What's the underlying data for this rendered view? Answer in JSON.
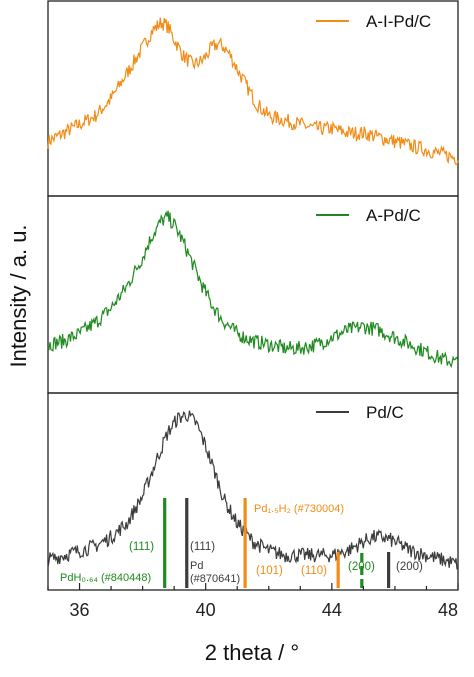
{
  "chart_data": [
    {
      "type": "line",
      "panel": "top",
      "legend": "A-I-Pd/C",
      "legend_position": "top-right",
      "color": "#f28c16",
      "x": [
        35,
        35.5,
        36,
        36.5,
        37,
        37.5,
        38,
        38.3,
        38.6,
        38.8,
        39,
        39.3,
        39.6,
        39.9,
        40.2,
        40.4,
        40.6,
        40.8,
        41.0,
        41.3,
        41.6,
        42,
        42.5,
        43,
        43.5,
        44,
        44.5,
        45,
        45.5,
        46,
        46.5,
        47,
        47.5,
        48
      ],
      "series": [
        {
          "name": "A-I-Pd/C",
          "values": [
            10,
            12,
            14,
            16,
            20,
            26,
            32,
            36,
            38,
            37,
            34,
            30,
            28,
            29,
            32,
            33,
            32,
            30,
            27,
            23,
            19,
            16,
            15,
            14,
            13,
            13,
            12,
            12,
            11,
            10,
            9,
            8,
            7,
            6
          ]
        }
      ]
    },
    {
      "type": "line",
      "panel": "middle",
      "legend": "A-Pd/C",
      "legend_position": "top-right",
      "color": "#1f8a1f",
      "x": [
        35,
        35.5,
        36,
        36.5,
        37,
        37.5,
        38,
        38.3,
        38.6,
        38.8,
        39,
        39.3,
        39.6,
        39.9,
        40.2,
        40.5,
        41,
        41.5,
        42,
        42.5,
        43,
        43.5,
        44,
        44.5,
        45,
        45.5,
        46,
        46.5,
        47,
        47.5,
        48
      ],
      "series": [
        {
          "name": "A-Pd/C",
          "values": [
            10,
            11,
            13,
            16,
            20,
            26,
            34,
            40,
            44,
            45,
            43,
            38,
            32,
            26,
            21,
            17,
            13,
            11,
            10,
            9,
            9,
            10,
            12,
            14,
            15,
            14,
            12,
            10,
            8,
            6,
            5
          ]
        }
      ]
    },
    {
      "type": "line",
      "panel": "bottom",
      "legend": "Pd/C",
      "legend_position": "top-right",
      "color": "#3c3c3c",
      "x": [
        35,
        35.5,
        36,
        36.5,
        37,
        37.5,
        38,
        38.5,
        38.8,
        39.1,
        39.4,
        39.7,
        40,
        40.3,
        40.6,
        41,
        41.5,
        42,
        42.5,
        43,
        43.5,
        44,
        44.5,
        45,
        45.3,
        45.6,
        46,
        46.5,
        47,
        47.5,
        48
      ],
      "series": [
        {
          "name": "Pd/C",
          "values": [
            4,
            5,
            6,
            7,
            9,
            12,
            18,
            27,
            32,
            35,
            36,
            34,
            29,
            23,
            17,
            12,
            8,
            6,
            5,
            5,
            5,
            5,
            6,
            8,
            9,
            9,
            8,
            6,
            5,
            4,
            3
          ]
        }
      ],
      "reference_lines": [
        {
          "x": 38.7,
          "color": "#1f8a1f",
          "style": "solid",
          "height": "tall"
        },
        {
          "x": 39.4,
          "color": "#3c3c3c",
          "style": "solid",
          "height": "tall"
        },
        {
          "x": 41.25,
          "color": "#f28c16",
          "style": "solid",
          "height": "tall"
        },
        {
          "x": 44.2,
          "color": "#f28c16",
          "style": "solid",
          "height": "short"
        },
        {
          "x": 44.95,
          "color": "#1f8a1f",
          "style": "dashed",
          "height": "short"
        },
        {
          "x": 45.8,
          "color": "#3c3c3c",
          "style": "solid",
          "height": "short"
        }
      ]
    }
  ],
  "axes": {
    "xlabel": "2 theta / °",
    "ylabel": "Intensity / a. u.",
    "xlim": [
      35,
      48
    ],
    "xticks": [
      36,
      40,
      44,
      48
    ],
    "xtick_labels": [
      "36",
      "40",
      "44",
      "48"
    ]
  },
  "annotations": {
    "pdh_index": "(111)",
    "pdh_ref": "PdH₀.₆₄ (#840448)",
    "pd_index": "(111)",
    "pd_ref_name": "Pd",
    "pd_ref_id": "(#870641)",
    "pd15h2_ref": "Pd₁.₅H₂ (#730004)",
    "pd15h2_101": "(101)",
    "pd15h2_110": "(110)",
    "pdh_200": "(200)",
    "pd_200": "(200)"
  },
  "colors": {
    "orange": "#f28c16",
    "green": "#1f8a1f",
    "gray": "#3c3c3c"
  }
}
